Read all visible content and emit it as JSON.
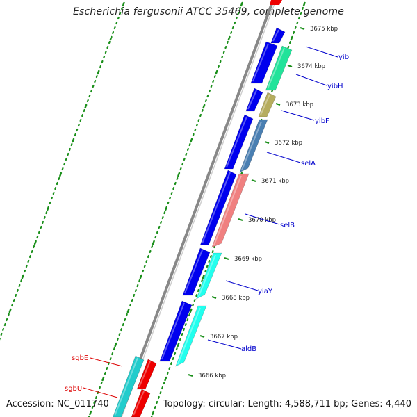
{
  "title": "Escherichia fergusonii ATCC 35469, complete genome",
  "accession": "Accession: NC_011740",
  "summary": "Topology: circular; Length: 4,588,711 bp; Genes: 4,440",
  "colors": {
    "forward_gene": "#0000ee",
    "backbone": "#888888",
    "gc_dots": "#1a8f1a",
    "label_blue": "#0000cc",
    "label_red": "#dd0000"
  },
  "ticks": [
    "3675 kbp",
    "3674 kbp",
    "3673 kbp",
    "3672 kbp",
    "3671 kbp",
    "3670 kbp",
    "3669 kbp",
    "3668 kbp",
    "3667 kbp",
    "3666 kbp"
  ],
  "gene_labels": [
    {
      "name": "yibI",
      "color": "#0000cc"
    },
    {
      "name": "yibH",
      "color": "#0000cc"
    },
    {
      "name": "yibF",
      "color": "#0000cc"
    },
    {
      "name": "selA",
      "color": "#0000cc"
    },
    {
      "name": "selB",
      "color": "#0000cc"
    },
    {
      "name": "yiaY",
      "color": "#0000cc"
    },
    {
      "name": "aldB",
      "color": "#0000cc"
    },
    {
      "name": "sgbE",
      "color": "#dd0000"
    },
    {
      "name": "sgbU",
      "color": "#dd0000"
    }
  ]
}
